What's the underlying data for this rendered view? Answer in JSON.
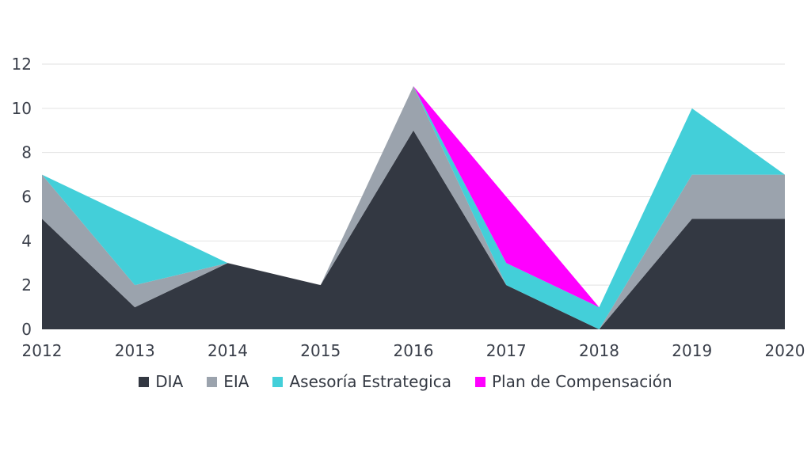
{
  "chart_data": {
    "type": "area",
    "stacked": true,
    "title": "",
    "xlabel": "",
    "ylabel": "",
    "ylim": [
      0,
      12
    ],
    "yticks": [
      0,
      2,
      4,
      6,
      8,
      10,
      12
    ],
    "grid": true,
    "legend_position": "bottom",
    "x": [
      "2012",
      "2013",
      "2014",
      "2015",
      "2016",
      "2017",
      "2018",
      "2019",
      "2020"
    ],
    "series": [
      {
        "name": "DIA",
        "color": "#333842",
        "values": [
          5,
          1,
          3,
          2,
          9,
          2,
          0,
          5,
          5
        ]
      },
      {
        "name": "EIA",
        "color": "#9ba3ad",
        "values": [
          2,
          1,
          0,
          0,
          2,
          0,
          0,
          2,
          2
        ]
      },
      {
        "name": "Asesoría Estrategica",
        "color": "#43cfd9",
        "values": [
          0,
          3,
          0,
          0,
          0,
          1,
          1,
          3,
          0
        ]
      },
      {
        "name": "Plan de Compensación",
        "color": "#ff00ff",
        "values": [
          0,
          0,
          0,
          0,
          0,
          3,
          0,
          0,
          0
        ]
      }
    ]
  }
}
